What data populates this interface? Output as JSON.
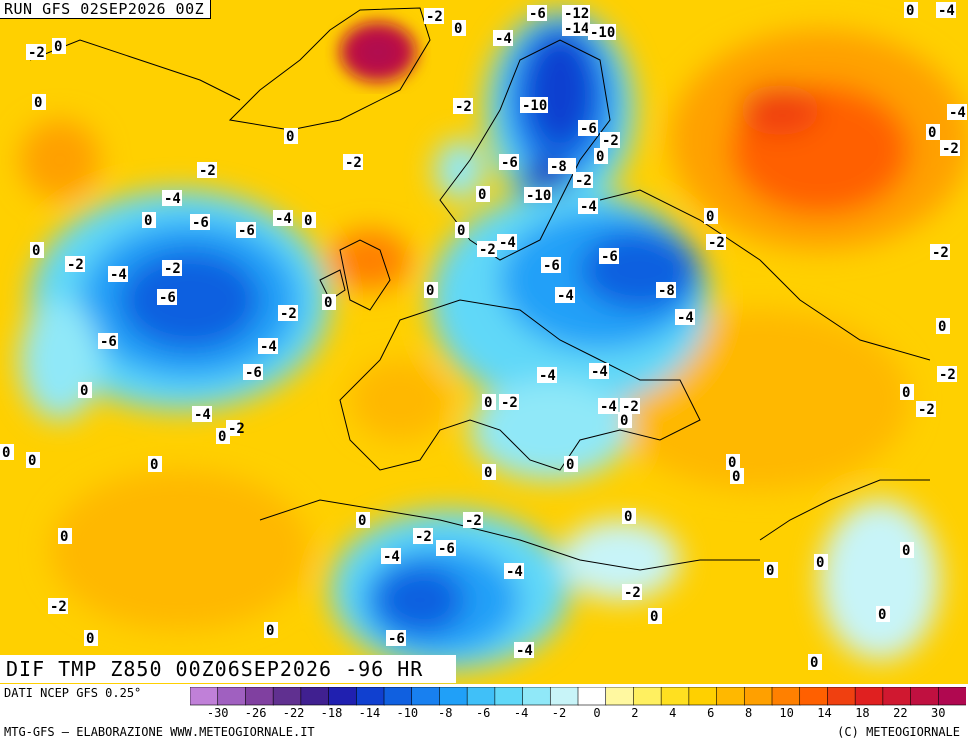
{
  "header": {
    "run_title": "RUN GFS 02SEP2026 00Z"
  },
  "map": {
    "field_title": "DIF TMP Z850 00Z06SEP2026 -96 HR",
    "contour_labels": [
      "0",
      "-2",
      "-4",
      "-6",
      "-8",
      "-10",
      "-12",
      "-14",
      "0",
      "-2",
      "-4",
      "-6",
      "-8",
      "-2",
      "-4",
      "-6",
      "-8",
      "-2",
      "-4",
      "-6"
    ]
  },
  "legend": {
    "ticks": [
      "-30",
      "-26",
      "-22",
      "-18",
      "-14",
      "-10",
      "-8",
      "-6",
      "-4",
      "-2",
      "0",
      "2",
      "4",
      "6",
      "8",
      "10",
      "14",
      "18",
      "22",
      "30"
    ],
    "colors": [
      "#c080d8",
      "#a060c0",
      "#8040a0",
      "#603090",
      "#402090",
      "#2020b0",
      "#1040d0",
      "#1060e0",
      "#1880f0",
      "#20a0f8",
      "#40c0f8",
      "#60d8f8",
      "#90e8f8",
      "#c8f4f8",
      "#ffffff",
      "#fff8a0",
      "#fff060",
      "#ffe020",
      "#ffd000",
      "#ffb800",
      "#ffa000",
      "#ff8000",
      "#ff6000",
      "#f04010",
      "#e02020",
      "#d01830",
      "#c01040",
      "#b00850"
    ]
  },
  "footer": {
    "data_source": "DATI NCEP GFS 0.25°",
    "credit_left": "MTG-GFS — ELABORAZIONE WWW.METEOGIORNALE.IT",
    "credit_right": "(C) METEOGIORNALE"
  }
}
